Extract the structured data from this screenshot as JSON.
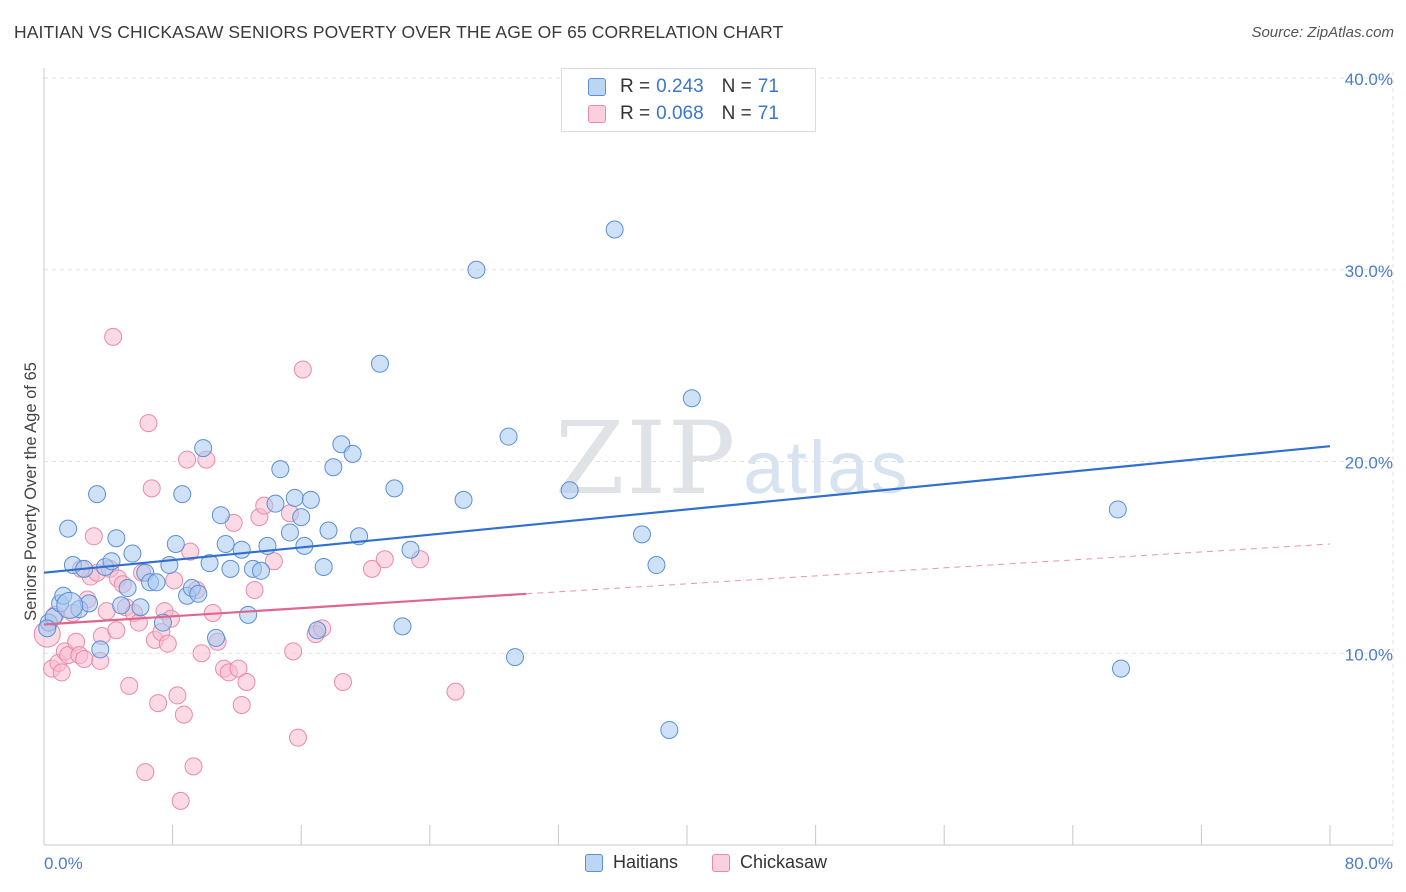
{
  "header": {
    "title": "HAITIAN VS CHICKASAW SENIORS POVERTY OVER THE AGE OF 65 CORRELATION CHART",
    "source": "Source: ZipAtlas.com"
  },
  "watermark": {
    "zip": "ZIP",
    "atlas": "atlas"
  },
  "legend": {
    "rows": [
      {
        "r_label": "R =",
        "r_value": "0.243",
        "n_label": "N =",
        "n_value": "71",
        "color": "#a8c8f0"
      },
      {
        "r_label": "R =",
        "r_value": "0.068",
        "n_label": "N =",
        "n_value": "71",
        "color": "#f8bcd0"
      }
    ]
  },
  "bottom_legend": [
    {
      "label": "Haitians",
      "color": "#a8c8f0"
    },
    {
      "label": "Chickasaw",
      "color": "#f8bcd0"
    }
  ],
  "chart_data": {
    "type": "scatter",
    "title": "HAITIAN VS CHICKASAW SENIORS POVERTY OVER THE AGE OF 65 CORRELATION CHART",
    "ylabel": "Seniors Poverty Over the Age of 65",
    "xlabel": "",
    "xlim": [
      0,
      80
    ],
    "ylim": [
      0,
      40
    ],
    "x_tick_labels": [
      "0.0%",
      "80.0%"
    ],
    "y_ticks": [
      10,
      20,
      30,
      40
    ],
    "y_tick_labels": [
      "10.0%",
      "20.0%",
      "30.0%",
      "40.0%"
    ],
    "grid": true,
    "colors": {
      "haitians_fill": "#a8c8f0",
      "haitians_stroke": "#5b8fd6",
      "haitians_line": "#2f6fcf",
      "chickasaw_fill": "#f8bcd0",
      "chickasaw_stroke": "#e98aaa",
      "chickasaw_line": "#e0668f"
    },
    "series": [
      {
        "name": "Haitians",
        "points": [
          [
            0.3,
            11.6
          ],
          [
            0.6,
            11.9
          ],
          [
            1,
            12.6
          ],
          [
            1.2,
            13
          ],
          [
            1.5,
            16.5
          ],
          [
            1.8,
            14.6
          ],
          [
            2.2,
            12.3
          ],
          [
            2.5,
            14.4
          ],
          [
            2.8,
            12.6
          ],
          [
            3.3,
            18.3
          ],
          [
            3.5,
            10.2
          ],
          [
            3.8,
            14.5
          ],
          [
            4.2,
            14.8
          ],
          [
            4.5,
            16
          ],
          [
            4.8,
            12.5
          ],
          [
            5.2,
            13.4
          ],
          [
            5.5,
            15.2
          ],
          [
            6,
            12.4
          ],
          [
            6.3,
            14.2
          ],
          [
            6.6,
            13.7
          ],
          [
            7,
            13.7
          ],
          [
            7.4,
            11.6
          ],
          [
            7.8,
            14.6
          ],
          [
            8.2,
            15.7
          ],
          [
            8.6,
            18.3
          ],
          [
            8.9,
            13
          ],
          [
            9.2,
            13.4
          ],
          [
            9.6,
            13.1
          ],
          [
            9.9,
            20.7
          ],
          [
            10.3,
            14.7
          ],
          [
            10.7,
            10.8
          ],
          [
            11,
            17.2
          ],
          [
            11.3,
            15.7
          ],
          [
            11.6,
            14.4
          ],
          [
            12.3,
            15.4
          ],
          [
            12.7,
            12
          ],
          [
            13,
            14.4
          ],
          [
            13.5,
            14.3
          ],
          [
            13.9,
            15.6
          ],
          [
            14.4,
            17.8
          ],
          [
            14.7,
            19.6
          ],
          [
            15.3,
            16.3
          ],
          [
            15.6,
            18.1
          ],
          [
            16,
            17.1
          ],
          [
            16.2,
            15.6
          ],
          [
            16.6,
            18
          ],
          [
            17,
            11.2
          ],
          [
            17.4,
            14.5
          ],
          [
            17.7,
            16.4
          ],
          [
            18,
            19.7
          ],
          [
            18.5,
            20.9
          ],
          [
            19.2,
            20.4
          ],
          [
            19.6,
            16.1
          ],
          [
            20.9,
            25.1
          ],
          [
            21.8,
            18.6
          ],
          [
            22.3,
            11.4
          ],
          [
            22.8,
            15.4
          ],
          [
            26.1,
            18
          ],
          [
            26.9,
            30
          ],
          [
            28.9,
            21.3
          ],
          [
            29.3,
            9.8
          ],
          [
            32.7,
            18.5
          ],
          [
            35.5,
            32.1
          ],
          [
            37.2,
            16.2
          ],
          [
            38.1,
            14.6
          ],
          [
            38.9,
            6
          ],
          [
            40.3,
            23.3
          ],
          [
            66.8,
            17.5
          ],
          [
            67,
            9.2
          ],
          [
            0.2,
            11.3
          ],
          [
            1.6,
            12.5
          ]
        ],
        "trend": {
          "x": [
            0,
            80
          ],
          "y": [
            14.2,
            20.8
          ]
        }
      },
      {
        "name": "Chickasaw",
        "points": [
          [
            0.2,
            11
          ],
          [
            0.5,
            9.2
          ],
          [
            0.7,
            12
          ],
          [
            0.9,
            9.5
          ],
          [
            1.1,
            9
          ],
          [
            1.3,
            10.1
          ],
          [
            1.5,
            9.9
          ],
          [
            1.8,
            12.1
          ],
          [
            2,
            10.6
          ],
          [
            2.2,
            9.9
          ],
          [
            2.5,
            9.7
          ],
          [
            2.7,
            12.8
          ],
          [
            2.9,
            14
          ],
          [
            3.1,
            16.1
          ],
          [
            3.3,
            14.2
          ],
          [
            3.5,
            9.6
          ],
          [
            3.6,
            10.9
          ],
          [
            3.9,
            12.2
          ],
          [
            4.1,
            14.4
          ],
          [
            4.3,
            26.5
          ],
          [
            4.6,
            13.9
          ],
          [
            4.9,
            13.6
          ],
          [
            5.1,
            12.4
          ],
          [
            5.3,
            8.3
          ],
          [
            5.6,
            12.1
          ],
          [
            5.9,
            11.6
          ],
          [
            6.1,
            14.2
          ],
          [
            6.3,
            3.8
          ],
          [
            6.5,
            22
          ],
          [
            6.7,
            18.6
          ],
          [
            6.9,
            10.7
          ],
          [
            7.1,
            7.4
          ],
          [
            7.3,
            11.1
          ],
          [
            7.5,
            12.2
          ],
          [
            7.7,
            10.5
          ],
          [
            7.9,
            11.8
          ],
          [
            8.1,
            13.8
          ],
          [
            8.3,
            7.8
          ],
          [
            8.5,
            2.3
          ],
          [
            8.7,
            6.8
          ],
          [
            8.9,
            20.1
          ],
          [
            9.1,
            15.3
          ],
          [
            9.3,
            4.1
          ],
          [
            9.5,
            13.3
          ],
          [
            9.8,
            10
          ],
          [
            10.1,
            20.1
          ],
          [
            10.5,
            12.1
          ],
          [
            10.8,
            10.6
          ],
          [
            11.2,
            9.2
          ],
          [
            11.5,
            9
          ],
          [
            11.8,
            16.8
          ],
          [
            12.1,
            9.2
          ],
          [
            12.3,
            7.3
          ],
          [
            12.6,
            8.5
          ],
          [
            13.1,
            13.3
          ],
          [
            13.4,
            17.1
          ],
          [
            13.7,
            17.7
          ],
          [
            14.3,
            14.8
          ],
          [
            15.3,
            17.3
          ],
          [
            15.5,
            10.1
          ],
          [
            15.8,
            5.6
          ],
          [
            16.1,
            24.8
          ],
          [
            16.9,
            11
          ],
          [
            17.3,
            11.3
          ],
          [
            18.6,
            8.5
          ],
          [
            20.4,
            14.4
          ],
          [
            21.2,
            14.9
          ],
          [
            23.4,
            14.9
          ],
          [
            25.6,
            8
          ],
          [
            4.5,
            11.2
          ],
          [
            2.3,
            14.4
          ]
        ],
        "trend": {
          "x": [
            0,
            30
          ],
          "y": [
            11.5,
            13.1
          ]
        },
        "trend_dashed": {
          "x": [
            30,
            80
          ],
          "y": [
            13.1,
            15.7
          ]
        }
      }
    ]
  }
}
